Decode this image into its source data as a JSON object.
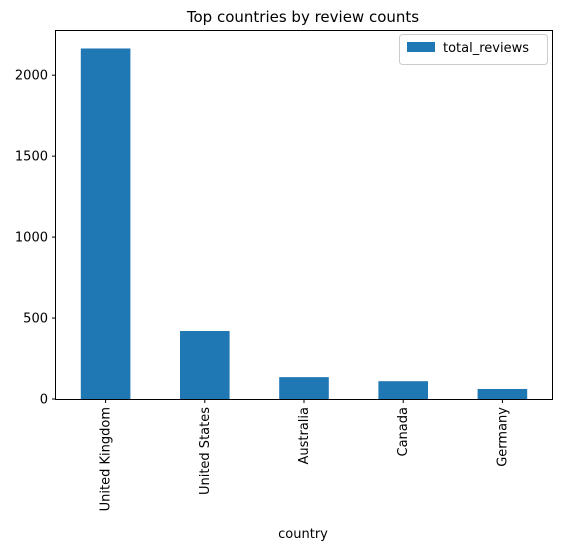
{
  "chart_data": {
    "type": "bar",
    "title": "Top countries by review counts",
    "xlabel": "country",
    "ylabel": "",
    "categories": [
      "United Kingdom",
      "United States",
      "Australia",
      "Canada",
      "Germany"
    ],
    "series": [
      {
        "name": "total_reviews",
        "values": [
          2165,
          420,
          135,
          110,
          62
        ],
        "color": "#1f77b4"
      }
    ],
    "ylim": [
      0,
      2273
    ],
    "yticks": [
      0,
      500,
      1000,
      1500,
      2000
    ],
    "ytick_labels": [
      "0",
      "500",
      "1000",
      "1500",
      "2000"
    ],
    "grid": false,
    "legend_position": "top-right"
  }
}
